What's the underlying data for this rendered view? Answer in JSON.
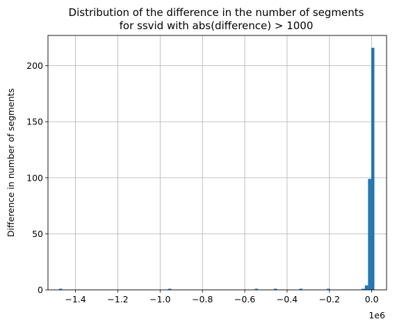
{
  "chart_data": {
    "type": "bar",
    "title_line1": "Distribution of the difference in the number of segments",
    "title_line2": "for ssvid with abs(difference) > 1000",
    "xlabel": "",
    "ylabel": "Difference in number of segments",
    "x_offset_label": "1e6",
    "xlim": [
      -1.53,
      0.07
    ],
    "ylim": [
      0,
      227
    ],
    "x_ticks": [
      -1.4,
      -1.2,
      -1.0,
      -0.8,
      -0.6,
      -0.4,
      -0.2,
      0.0
    ],
    "x_tick_labels": [
      "−1.4",
      "−1.2",
      "−1.0",
      "−0.8",
      "−0.6",
      "−0.4",
      "−0.2",
      "0.0"
    ],
    "y_ticks": [
      0,
      50,
      100,
      150,
      200
    ],
    "y_tick_labels": [
      "0",
      "50",
      "100",
      "150",
      "200"
    ],
    "grid": true,
    "bar_color": "#1f77b4",
    "bin_width": 0.0149,
    "bars": [
      {
        "x": -1.47,
        "value": 1
      },
      {
        "x": -0.955,
        "value": 1
      },
      {
        "x": -0.545,
        "value": 1
      },
      {
        "x": -0.455,
        "value": 1
      },
      {
        "x": -0.335,
        "value": 1
      },
      {
        "x": -0.205,
        "value": 1
      },
      {
        "x": -0.04,
        "value": 1
      },
      {
        "x": -0.025,
        "value": 4
      },
      {
        "x": -0.01,
        "value": 99
      },
      {
        "x": 0.005,
        "value": 216
      }
    ]
  }
}
